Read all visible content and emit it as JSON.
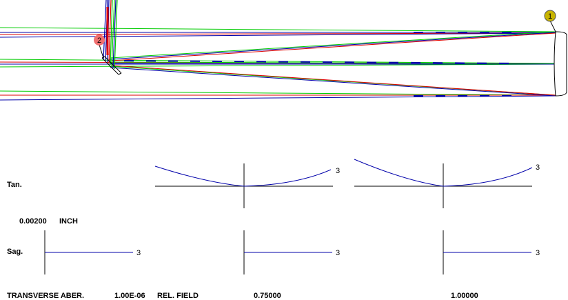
{
  "layout_view": {
    "surface_markers": [
      {
        "id": "surface-1",
        "label": "1",
        "color": "#c8b400"
      },
      {
        "id": "surface-2",
        "label": "2",
        "color": "#f07070"
      }
    ],
    "ray_colors": {
      "field_a": "#0000aa",
      "field_b": "#00cc00",
      "field_c": "#dd0000"
    }
  },
  "aberration_plot": {
    "rows": {
      "tangential": "Tan.",
      "sagittal": "Sag."
    },
    "scale": {
      "value": "0.00200",
      "unit": "INCH"
    },
    "curve_label": "3",
    "curve_color": "#0000aa",
    "footer": {
      "title": "TRANSVERSE ABER.",
      "wavelength_value": "1.00E-06",
      "field_label": "REL. FIELD",
      "fields": [
        "0.75000",
        "1.00000"
      ]
    }
  }
}
